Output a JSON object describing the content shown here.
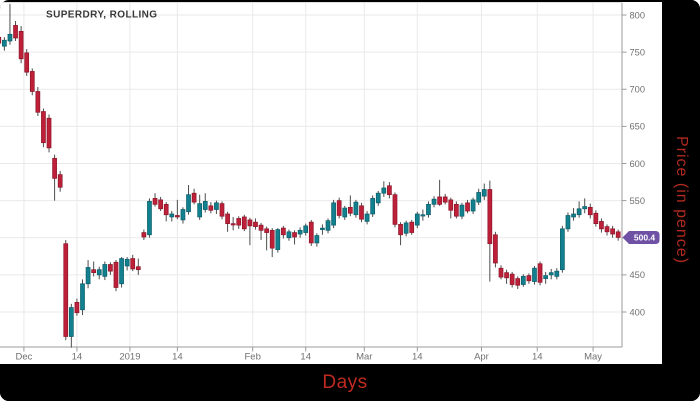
{
  "chart_data": {
    "type": "candlestick",
    "title": "SUPERDRY, ROLLING",
    "x_axis_label": "Days",
    "y_axis_label": "Price (in pence)",
    "legend": "none",
    "grid": "on",
    "ylim": [
      355,
      820
    ],
    "y_ticks": [
      800,
      750,
      700,
      650,
      600,
      550,
      500,
      450,
      400
    ],
    "x_ticks": [
      {
        "label": "Dec",
        "index": 4.5
      },
      {
        "label": "14",
        "index": 14
      },
      {
        "label": "2019",
        "index": 23.5
      },
      {
        "label": "14",
        "index": 32
      },
      {
        "label": "Feb",
        "index": 45.5
      },
      {
        "label": "14",
        "index": 55
      },
      {
        "label": "Mar",
        "index": 65.5
      },
      {
        "label": "14",
        "index": 75
      },
      {
        "label": "Apr",
        "index": 86.5
      },
      {
        "label": "14",
        "index": 96.5
      },
      {
        "label": "May",
        "index": 106.5
      }
    ],
    "last_price": {
      "value": "500.4",
      "price": 500.4,
      "bg_color": "#6e51a5",
      "text_color": "#ffffff"
    },
    "colors": {
      "up": "#12808e",
      "up_edge": "#0b5d68",
      "down": "#bf2039",
      "down_edge": "#8c1529",
      "wick": "#4d4d4d",
      "grid": "#e9e9e9",
      "axis_line": "#9b9b9b",
      "tick_label": "#707070",
      "title": "#383838",
      "plot_bg": "#ffffff"
    },
    "ohlc": [
      [
        770,
        774,
        757,
        762
      ],
      [
        758,
        770,
        752,
        766
      ],
      [
        765,
        815,
        760,
        774
      ],
      [
        786,
        792,
        765,
        769
      ],
      [
        778,
        785,
        735,
        741
      ],
      [
        749,
        754,
        718,
        723
      ],
      [
        724,
        728,
        692,
        697
      ],
      [
        697,
        703,
        664,
        669
      ],
      [
        670,
        674,
        622,
        628
      ],
      [
        661,
        666,
        615,
        621
      ],
      [
        607,
        612,
        550,
        580
      ],
      [
        585,
        590,
        562,
        568
      ],
      [
        492,
        497,
        362,
        367
      ],
      [
        367,
        411,
        352,
        406
      ],
      [
        413,
        418,
        395,
        399
      ],
      [
        403,
        444,
        396,
        438
      ],
      [
        438,
        470,
        432,
        460
      ],
      [
        457,
        468,
        448,
        453
      ],
      [
        450,
        461,
        444,
        457
      ],
      [
        448,
        468,
        443,
        464
      ],
      [
        464,
        467,
        450,
        455
      ],
      [
        467,
        470,
        428,
        433
      ],
      [
        438,
        474,
        433,
        472
      ],
      [
        462,
        474,
        456,
        471
      ],
      [
        472,
        477,
        455,
        458
      ],
      [
        461,
        472,
        450,
        457
      ],
      [
        507,
        511,
        497,
        501
      ],
      [
        504,
        553,
        500,
        549
      ],
      [
        553,
        560,
        542,
        545
      ],
      [
        551,
        555,
        536,
        539
      ],
      [
        545,
        548,
        522,
        531
      ],
      [
        528,
        536,
        522,
        532
      ],
      [
        530,
        551,
        525,
        528
      ],
      [
        524,
        541,
        519,
        538
      ],
      [
        535,
        571,
        531,
        558
      ],
      [
        560,
        566,
        545,
        548
      ],
      [
        528,
        558,
        524,
        546
      ],
      [
        538,
        560,
        534,
        549
      ],
      [
        543,
        548,
        533,
        537
      ],
      [
        538,
        550,
        532,
        547
      ],
      [
        546,
        549,
        525,
        529
      ],
      [
        532,
        535,
        508,
        519
      ],
      [
        519,
        528,
        510,
        518
      ],
      [
        526,
        529,
        512,
        517
      ],
      [
        528,
        531,
        509,
        512
      ],
      [
        524,
        527,
        490,
        516
      ],
      [
        521,
        526,
        511,
        515
      ],
      [
        517,
        520,
        497,
        510
      ],
      [
        512,
        515,
        483,
        507
      ],
      [
        510,
        513,
        474,
        486
      ],
      [
        484,
        513,
        480,
        511
      ],
      [
        513,
        516,
        499,
        504
      ],
      [
        500,
        511,
        496,
        508
      ],
      [
        507,
        510,
        491,
        501
      ],
      [
        505,
        514,
        500,
        510
      ],
      [
        507,
        519,
        503,
        516
      ],
      [
        521,
        524,
        489,
        493
      ],
      [
        493,
        506,
        488,
        503
      ],
      [
        511,
        518,
        504,
        513
      ],
      [
        510,
        526,
        506,
        523
      ],
      [
        517,
        551,
        513,
        547
      ],
      [
        550,
        554,
        526,
        530
      ],
      [
        528,
        543,
        524,
        540
      ],
      [
        541,
        557,
        529,
        533
      ],
      [
        531,
        551,
        527,
        548
      ],
      [
        543,
        547,
        521,
        525
      ],
      [
        522,
        536,
        518,
        532
      ],
      [
        532,
        557,
        528,
        553
      ],
      [
        547,
        563,
        543,
        560
      ],
      [
        560,
        576,
        555,
        567
      ],
      [
        570,
        575,
        553,
        558
      ],
      [
        558,
        561,
        514,
        518
      ],
      [
        518,
        521,
        490,
        504
      ],
      [
        506,
        523,
        502,
        520
      ],
      [
        521,
        524,
        504,
        507
      ],
      [
        517,
        535,
        513,
        532
      ],
      [
        530,
        538,
        523,
        531
      ],
      [
        531,
        549,
        527,
        545
      ],
      [
        545,
        556,
        541,
        552
      ],
      [
        555,
        578,
        543,
        545
      ],
      [
        555,
        559,
        545,
        548
      ],
      [
        551,
        554,
        526,
        537
      ],
      [
        545,
        549,
        526,
        529
      ],
      [
        529,
        547,
        525,
        544
      ],
      [
        547,
        551,
        533,
        536
      ],
      [
        536,
        554,
        532,
        551
      ],
      [
        548,
        566,
        544,
        561
      ],
      [
        556,
        573,
        551,
        565
      ],
      [
        565,
        577,
        441,
        492
      ],
      [
        504,
        508,
        460,
        466
      ],
      [
        459,
        463,
        444,
        447
      ],
      [
        453,
        457,
        438,
        446
      ],
      [
        451,
        454,
        433,
        437
      ],
      [
        445,
        448,
        431,
        436
      ],
      [
        437,
        451,
        434,
        448
      ],
      [
        449,
        452,
        438,
        442
      ],
      [
        441,
        462,
        437,
        459
      ],
      [
        465,
        468,
        436,
        440
      ],
      [
        445,
        454,
        438,
        449
      ],
      [
        450,
        458,
        444,
        453
      ],
      [
        448,
        459,
        444,
        455
      ],
      [
        457,
        516,
        453,
        512
      ],
      [
        512,
        534,
        508,
        530
      ],
      [
        528,
        540,
        523,
        532
      ],
      [
        531,
        549,
        527,
        539
      ],
      [
        539,
        553,
        533,
        542
      ],
      [
        541,
        546,
        526,
        531
      ],
      [
        533,
        537,
        515,
        519
      ],
      [
        522,
        526,
        507,
        512
      ],
      [
        515,
        518,
        503,
        508
      ],
      [
        512,
        516,
        500,
        505
      ],
      [
        508,
        511,
        496,
        500.4
      ]
    ]
  }
}
